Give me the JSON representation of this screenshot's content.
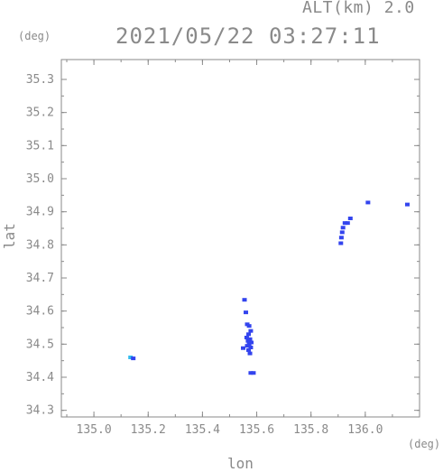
{
  "header": {
    "alt_label": "ALT(km) 2.0",
    "timestamp": "2021/05/22 03:27:11"
  },
  "colors": {
    "axis": "#8a8a8a",
    "point": "#3344ee",
    "point_alt": "#33bbee",
    "background": "#ffffff"
  },
  "chart_data": {
    "type": "scatter",
    "title": "2021/05/22 03:27:11",
    "xlabel": "lon",
    "ylabel": "lat",
    "x_unit": "(deg)",
    "y_unit": "(deg)",
    "xlim": [
      134.88,
      136.2
    ],
    "ylim": [
      34.28,
      35.36
    ],
    "xticks": [
      "135.0",
      "135.2",
      "135.4",
      "135.6",
      "135.8",
      "136.0"
    ],
    "yticks": [
      "34.3",
      "34.4",
      "34.5",
      "34.6",
      "34.7",
      "34.8",
      "34.9",
      "35.0",
      "35.1",
      "35.2",
      "35.3"
    ],
    "grid": false,
    "points": [
      {
        "x": 135.135,
        "y": 34.46,
        "color": "alt"
      },
      {
        "x": 135.145,
        "y": 34.457,
        "color": "main"
      },
      {
        "x": 135.555,
        "y": 34.634,
        "color": "main"
      },
      {
        "x": 135.56,
        "y": 34.596,
        "color": "main"
      },
      {
        "x": 135.565,
        "y": 34.56,
        "color": "main"
      },
      {
        "x": 135.572,
        "y": 34.555,
        "color": "main"
      },
      {
        "x": 135.578,
        "y": 34.54,
        "color": "main"
      },
      {
        "x": 135.57,
        "y": 34.53,
        "color": "main"
      },
      {
        "x": 135.563,
        "y": 34.52,
        "color": "main"
      },
      {
        "x": 135.568,
        "y": 34.51,
        "color": "main"
      },
      {
        "x": 135.575,
        "y": 34.515,
        "color": "main"
      },
      {
        "x": 135.58,
        "y": 34.505,
        "color": "main"
      },
      {
        "x": 135.572,
        "y": 34.5,
        "color": "main"
      },
      {
        "x": 135.565,
        "y": 34.495,
        "color": "main"
      },
      {
        "x": 135.578,
        "y": 34.49,
        "color": "main"
      },
      {
        "x": 135.55,
        "y": 34.488,
        "color": "main"
      },
      {
        "x": 135.57,
        "y": 34.482,
        "color": "main"
      },
      {
        "x": 135.575,
        "y": 34.472,
        "color": "main"
      },
      {
        "x": 135.578,
        "y": 34.413,
        "color": "main"
      },
      {
        "x": 135.588,
        "y": 34.413,
        "color": "main"
      },
      {
        "x": 135.91,
        "y": 34.805,
        "color": "main"
      },
      {
        "x": 135.912,
        "y": 34.822,
        "color": "main"
      },
      {
        "x": 135.915,
        "y": 34.838,
        "color": "main"
      },
      {
        "x": 135.918,
        "y": 34.852,
        "color": "main"
      },
      {
        "x": 135.925,
        "y": 34.866,
        "color": "main"
      },
      {
        "x": 135.935,
        "y": 34.866,
        "color": "main"
      },
      {
        "x": 135.945,
        "y": 34.88,
        "color": "main"
      },
      {
        "x": 136.01,
        "y": 34.928,
        "color": "main"
      },
      {
        "x": 136.155,
        "y": 34.922,
        "color": "main"
      }
    ]
  }
}
